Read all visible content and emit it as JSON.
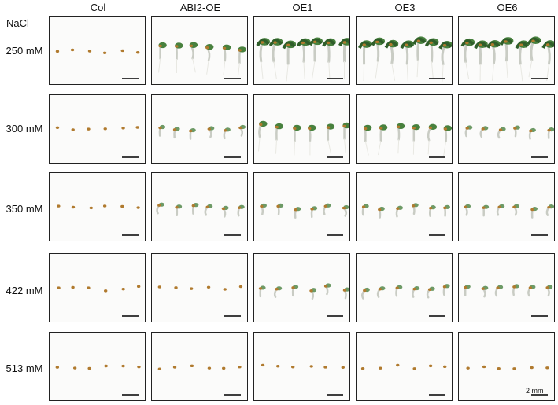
{
  "header": {
    "columns": [
      "Col",
      "ABI2-OE",
      "OE1",
      "OE3",
      "OE6"
    ],
    "row_group_label": "NaCl"
  },
  "rows": [
    "250 mM",
    "300 mM",
    "350 mM",
    "422 mM",
    "513 mM"
  ],
  "scale_bar_label": "2 mm",
  "colors": {
    "seed": "#b07a2e",
    "cotyledon": "#3e7a34",
    "hypocotyl": "#c9ccc4",
    "root": "#e8e8e2",
    "border": "#222222"
  },
  "growth_levels": [
    [
      0,
      2,
      3,
      3,
      3
    ],
    [
      0,
      1,
      2,
      2,
      1
    ],
    [
      0,
      1,
      1,
      1,
      1
    ],
    [
      0,
      0,
      1,
      1,
      1
    ],
    [
      0,
      0,
      0,
      0,
      0
    ]
  ]
}
